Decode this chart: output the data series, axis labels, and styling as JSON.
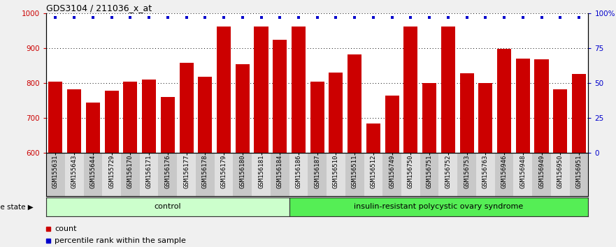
{
  "title": "GDS3104 / 211036_x_at",
  "samples": [
    "GSM155631",
    "GSM155643",
    "GSM155644",
    "GSM155729",
    "GSM156170",
    "GSM156171",
    "GSM156176",
    "GSM156177",
    "GSM156178",
    "GSM156179",
    "GSM156180",
    "GSM156181",
    "GSM156184",
    "GSM156186",
    "GSM156187",
    "GSM156510",
    "GSM156511",
    "GSM156512",
    "GSM156749",
    "GSM156750",
    "GSM156751",
    "GSM156752",
    "GSM156753",
    "GSM156763",
    "GSM156946",
    "GSM156948",
    "GSM156949",
    "GSM156950",
    "GSM156951"
  ],
  "counts": [
    805,
    783,
    744,
    778,
    805,
    810,
    760,
    858,
    818,
    963,
    854,
    963,
    924,
    963,
    805,
    830,
    883,
    684,
    765,
    963,
    800,
    963,
    828,
    800,
    898,
    870,
    868,
    783,
    826
  ],
  "percentile_ranks": [
    97,
    97,
    97,
    97,
    97,
    97,
    97,
    97,
    97,
    97,
    97,
    97,
    97,
    97,
    97,
    97,
    97,
    97,
    97,
    97,
    97,
    97,
    97,
    97,
    97,
    97,
    97,
    97,
    97
  ],
  "n_control": 13,
  "control_label": "control",
  "disease_label": "insulin-resistant polycystic ovary syndrome",
  "disease_state_label": "disease state",
  "bar_color": "#cc0000",
  "dot_color": "#0000cc",
  "ylim_left": [
    600,
    1000
  ],
  "yticks_left": [
    600,
    700,
    800,
    900,
    1000
  ],
  "ylim_right": [
    0,
    100
  ],
  "yticks_right": [
    0,
    25,
    50,
    75,
    100
  ],
  "grid_values": [
    700,
    800,
    900,
    1000
  ],
  "control_bg": "#ccffcc",
  "disease_bg": "#55ee55",
  "legend_count_label": "count",
  "legend_pct_label": "percentile rank within the sample",
  "bg_color": "#f0f0f0",
  "plot_bg": "#ffffff",
  "xtick_bg_dark": "#c8c8c8",
  "xtick_bg_light": "#e0e0e0"
}
